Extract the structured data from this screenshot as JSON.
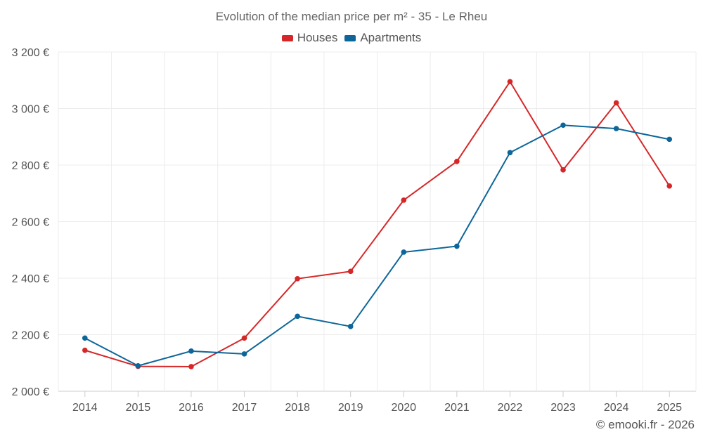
{
  "chart_data": {
    "type": "line",
    "title": "Evolution of the median price per m² - 35 - Le Rheu",
    "categories": [
      "2014",
      "2015",
      "2016",
      "2017",
      "2018",
      "2019",
      "2020",
      "2021",
      "2022",
      "2023",
      "2024",
      "2025"
    ],
    "series": [
      {
        "name": "Houses",
        "color": "#d62728",
        "values": [
          2145,
          2088,
          2087,
          2188,
          2398,
          2424,
          2676,
          2813,
          3095,
          2783,
          3020,
          2726
        ]
      },
      {
        "name": "Apartments",
        "color": "#0d6699",
        "values": [
          2188,
          2090,
          2142,
          2132,
          2265,
          2229,
          2492,
          2513,
          2844,
          2941,
          2929,
          2891
        ]
      }
    ],
    "y_ticks": [
      "2 000 €",
      "2 200 €",
      "2 400 €",
      "2 600 €",
      "2 800 €",
      "3 000 €",
      "3 200 €"
    ],
    "ylim": [
      2000,
      3200
    ],
    "grid": true,
    "legend_position": "top-center"
  },
  "credit": "© emooki.fr - 2026"
}
